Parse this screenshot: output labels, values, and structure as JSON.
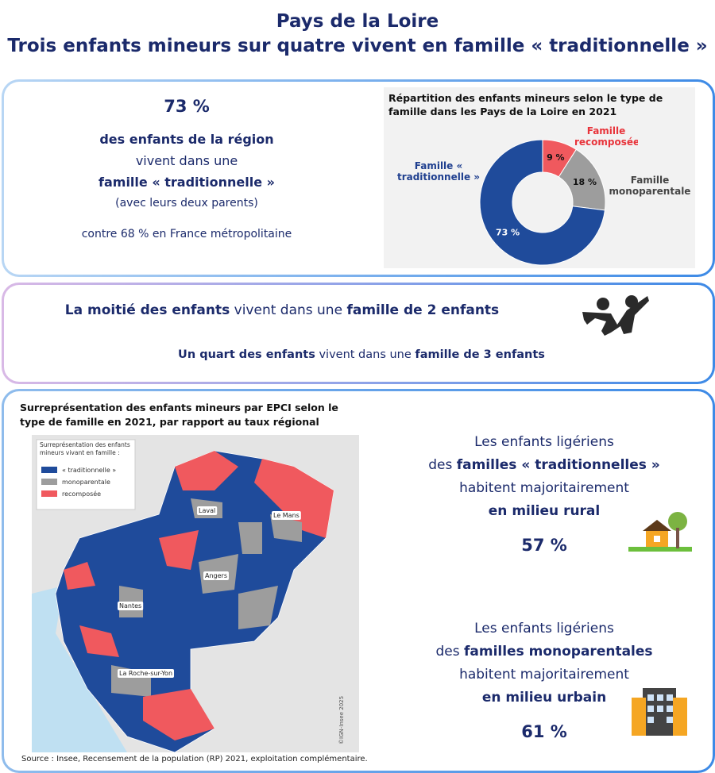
{
  "header": {
    "line1": "Pays de la Loire",
    "line2": "Trois enfants mineurs sur quatre vivent en famille « traditionnelle »"
  },
  "panel1": {
    "big": "73 %",
    "line1": "des enfants de la région",
    "line2": "vivent dans une",
    "line3": "famille « traditionnelle »",
    "line4": "(avec leurs deux parents)",
    "line5": "contre 68 % en France métropolitaine"
  },
  "chart_data": {
    "type": "donut",
    "title": "Répartition des enfants mineurs selon le type de famille dans les Pays de la Loire en 2021",
    "categories": [
      "Famille recomposée",
      "Famille monoparentale",
      "Famille « traditionnelle »"
    ],
    "values": [
      9,
      18,
      73
    ],
    "value_labels": [
      "9 %",
      "18 %",
      "73 %"
    ],
    "colors": [
      "#f0595e",
      "#9d9d9d",
      "#1f4b9b"
    ]
  },
  "panel2": {
    "s1": [
      "La moitié des enfants",
      "vivent dans une",
      "famille de 2 enfants"
    ],
    "s2": [
      "Un quart des enfants",
      "vivent dans une",
      "famille de 3 enfants"
    ]
  },
  "map": {
    "title": "Surreprésentation des enfants mineurs par EPCI selon le type de famille en 2021, par rapport au taux régional",
    "legend_title": "Surreprésentation des enfants mineurs vivant en famille :",
    "legend": [
      "« traditionnelle »",
      "monoparentale",
      "recomposée"
    ],
    "cities": [
      "Laval",
      "Le Mans",
      "Angers",
      "Nantes",
      "La Roche-sur-Yon"
    ],
    "credit": "©IGN-Insee 2025",
    "source": "Source : Insee, Recensement de la population (RP) 2021, exploitation complémentaire."
  },
  "panel3": {
    "a": [
      "Les enfants ligériens",
      "des",
      "familles « traditionnelles »",
      "habitent majoritairement",
      "en milieu rural",
      "57 %"
    ],
    "b": [
      "Les enfants ligériens",
      "des",
      "familles monoparentales",
      "habitent majoritairement",
      "en milieu urbain",
      "61 %"
    ]
  }
}
